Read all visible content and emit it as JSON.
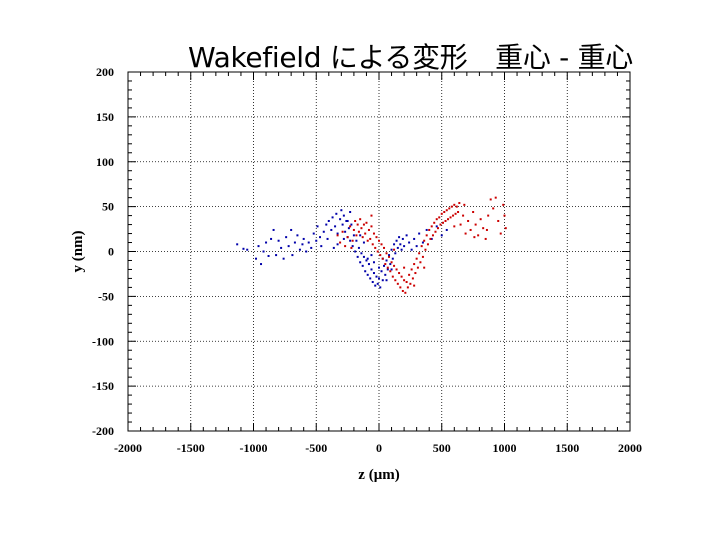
{
  "chart_data": {
    "type": "scatter",
    "title": "Wakefield による変形　重心 - 重心",
    "xlabel": "z (μm)",
    "ylabel": "y (nm)",
    "xlim": [
      -2000,
      2000
    ],
    "ylim": [
      -200,
      200
    ],
    "xticks": [
      -2000,
      -1500,
      -1000,
      -500,
      0,
      500,
      1000,
      1500,
      2000
    ],
    "yticks": [
      200,
      150,
      100,
      50,
      0,
      -50,
      -100,
      -150,
      -200
    ],
    "grid": true,
    "series": [
      {
        "color": "#0000aa",
        "points": [
          [
            -1130,
            8
          ],
          [
            -1080,
            3
          ],
          [
            -1050,
            2
          ],
          [
            -980,
            -8
          ],
          [
            -960,
            6
          ],
          [
            -940,
            -14
          ],
          [
            -920,
            0
          ],
          [
            -900,
            10
          ],
          [
            -880,
            -5
          ],
          [
            -860,
            14
          ],
          [
            -840,
            24
          ],
          [
            -820,
            -4
          ],
          [
            -800,
            12
          ],
          [
            -780,
            4
          ],
          [
            -760,
            -8
          ],
          [
            -740,
            16
          ],
          [
            -720,
            6
          ],
          [
            -700,
            24
          ],
          [
            -690,
            -4
          ],
          [
            -670,
            10
          ],
          [
            -650,
            18
          ],
          [
            -630,
            2
          ],
          [
            -610,
            8
          ],
          [
            -600,
            14
          ],
          [
            -580,
            0
          ],
          [
            -560,
            10
          ],
          [
            -540,
            4
          ],
          [
            -520,
            20
          ],
          [
            -500,
            12
          ],
          [
            -490,
            28
          ],
          [
            -470,
            16
          ],
          [
            -460,
            6
          ],
          [
            -440,
            22
          ],
          [
            -420,
            30
          ],
          [
            -410,
            14
          ],
          [
            -400,
            34
          ],
          [
            -380,
            24
          ],
          [
            -370,
            38
          ],
          [
            -350,
            28
          ],
          [
            -340,
            42
          ],
          [
            -330,
            20
          ],
          [
            -310,
            36
          ],
          [
            -300,
            46
          ],
          [
            -290,
            30
          ],
          [
            -280,
            40
          ],
          [
            -270,
            22
          ],
          [
            -260,
            34
          ],
          [
            -250,
            16
          ],
          [
            -240,
            26
          ],
          [
            -230,
            12
          ],
          [
            -220,
            30
          ],
          [
            -210,
            6
          ],
          [
            -200,
            18
          ],
          [
            -190,
            0
          ],
          [
            -180,
            12
          ],
          [
            -170,
            -6
          ],
          [
            -160,
            4
          ],
          [
            -150,
            -12
          ],
          [
            -140,
            -2
          ],
          [
            -130,
            -16
          ],
          [
            -120,
            -6
          ],
          [
            -110,
            -22
          ],
          [
            -100,
            -10
          ],
          [
            -90,
            -26
          ],
          [
            -80,
            -14
          ],
          [
            -70,
            -30
          ],
          [
            -60,
            -20
          ],
          [
            -50,
            -34
          ],
          [
            -40,
            -24
          ],
          [
            -30,
            -38
          ],
          [
            -20,
            -28
          ],
          [
            -10,
            -36
          ],
          [
            0,
            -30
          ],
          [
            10,
            -40
          ],
          [
            20,
            -22
          ],
          [
            30,
            -32
          ],
          [
            40,
            -16
          ],
          [
            50,
            -26
          ],
          [
            60,
            -10
          ],
          [
            70,
            -20
          ],
          [
            80,
            -4
          ],
          [
            90,
            -14
          ],
          [
            100,
            2
          ],
          [
            110,
            -8
          ],
          [
            120,
            8
          ],
          [
            130,
            -2
          ],
          [
            140,
            12
          ],
          [
            150,
            4
          ],
          [
            160,
            16
          ],
          [
            170,
            8
          ],
          [
            180,
            2
          ],
          [
            190,
            14
          ],
          [
            200,
            6
          ],
          [
            220,
            18
          ],
          [
            240,
            10
          ],
          [
            260,
            2
          ],
          [
            280,
            14
          ],
          [
            300,
            6
          ],
          [
            320,
            20
          ],
          [
            350,
            10
          ],
          [
            380,
            24
          ],
          [
            420,
            14
          ],
          [
            460,
            28
          ],
          [
            500,
            18
          ],
          [
            540,
            24
          ],
          [
            -330,
            8
          ],
          [
            -280,
            14
          ],
          [
            -250,
            34
          ],
          [
            -150,
            18
          ],
          [
            -90,
            -8
          ],
          [
            -40,
            -12
          ],
          [
            30,
            -8
          ],
          [
            -360,
            4
          ],
          [
            -230,
            44
          ],
          [
            -120,
            10
          ],
          [
            -60,
            -4
          ],
          [
            0,
            -18
          ],
          [
            60,
            -32
          ],
          [
            100,
            -20
          ]
        ]
      },
      {
        "color": "#cc0000",
        "points": [
          [
            -330,
            18
          ],
          [
            -310,
            10
          ],
          [
            -290,
            22
          ],
          [
            -270,
            6
          ],
          [
            -250,
            16
          ],
          [
            -230,
            28
          ],
          [
            -210,
            12
          ],
          [
            -200,
            24
          ],
          [
            -190,
            34
          ],
          [
            -180,
            18
          ],
          [
            -170,
            30
          ],
          [
            -160,
            22
          ],
          [
            -150,
            36
          ],
          [
            -140,
            26
          ],
          [
            -130,
            16
          ],
          [
            -120,
            30
          ],
          [
            -110,
            20
          ],
          [
            -100,
            32
          ],
          [
            -90,
            12
          ],
          [
            -80,
            24
          ],
          [
            -70,
            14
          ],
          [
            -60,
            28
          ],
          [
            -50,
            8
          ],
          [
            -40,
            20
          ],
          [
            -30,
            4
          ],
          [
            -20,
            16
          ],
          [
            -10,
            0
          ],
          [
            0,
            12
          ],
          [
            10,
            -4
          ],
          [
            20,
            8
          ],
          [
            30,
            -8
          ],
          [
            40,
            4
          ],
          [
            50,
            -14
          ],
          [
            60,
            -2
          ],
          [
            70,
            -18
          ],
          [
            80,
            -6
          ],
          [
            90,
            -22
          ],
          [
            100,
            -12
          ],
          [
            110,
            -28
          ],
          [
            120,
            -16
          ],
          [
            130,
            -32
          ],
          [
            140,
            -20
          ],
          [
            150,
            -36
          ],
          [
            160,
            -24
          ],
          [
            170,
            -40
          ],
          [
            180,
            -28
          ],
          [
            190,
            -44
          ],
          [
            200,
            -32
          ],
          [
            210,
            -46
          ],
          [
            220,
            -34
          ],
          [
            230,
            -40
          ],
          [
            240,
            -26
          ],
          [
            250,
            -36
          ],
          [
            260,
            -20
          ],
          [
            270,
            -30
          ],
          [
            280,
            -14
          ],
          [
            290,
            -24
          ],
          [
            300,
            -8
          ],
          [
            310,
            -18
          ],
          [
            320,
            -2
          ],
          [
            330,
            -12
          ],
          [
            340,
            6
          ],
          [
            350,
            -6
          ],
          [
            360,
            12
          ],
          [
            370,
            2
          ],
          [
            380,
            18
          ],
          [
            390,
            8
          ],
          [
            400,
            24
          ],
          [
            410,
            14
          ],
          [
            420,
            28
          ],
          [
            430,
            18
          ],
          [
            440,
            32
          ],
          [
            450,
            22
          ],
          [
            460,
            36
          ],
          [
            470,
            26
          ],
          [
            480,
            38
          ],
          [
            490,
            30
          ],
          [
            500,
            42
          ],
          [
            510,
            32
          ],
          [
            520,
            44
          ],
          [
            530,
            34
          ],
          [
            540,
            46
          ],
          [
            550,
            36
          ],
          [
            560,
            48
          ],
          [
            570,
            38
          ],
          [
            580,
            50
          ],
          [
            590,
            40
          ],
          [
            600,
            52
          ],
          [
            610,
            42
          ],
          [
            620,
            50
          ],
          [
            630,
            44
          ],
          [
            640,
            54
          ],
          [
            650,
            30
          ],
          [
            670,
            40
          ],
          [
            690,
            20
          ],
          [
            710,
            34
          ],
          [
            730,
            24
          ],
          [
            750,
            44
          ],
          [
            770,
            30
          ],
          [
            790,
            18
          ],
          [
            810,
            36
          ],
          [
            830,
            26
          ],
          [
            850,
            14
          ],
          [
            870,
            40
          ],
          [
            890,
            58
          ],
          [
            910,
            48
          ],
          [
            930,
            60
          ],
          [
            950,
            34
          ],
          [
            970,
            20
          ],
          [
            990,
            52
          ],
          [
            1010,
            26
          ],
          [
            -220,
            4
          ],
          [
            -60,
            40
          ],
          [
            120,
            2
          ],
          [
            200,
            -18
          ],
          [
            280,
            -38
          ],
          [
            360,
            -18
          ],
          [
            600,
            28
          ],
          [
            680,
            52
          ],
          [
            760,
            16
          ],
          [
            860,
            24
          ],
          [
            1000,
            40
          ]
        ]
      }
    ]
  }
}
